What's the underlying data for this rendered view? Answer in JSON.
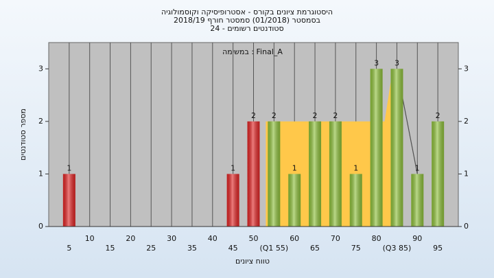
{
  "chart_data": {
    "type": "bar",
    "title": "היסטוגרמת ציונים בקורס - אסטרופיסיקה וקוסמולוגיה",
    "subtitle": "בסמסטר  (01/2018)  סמסטר חורף 2018/19",
    "subtitle2": "סטודנטים רשומים - 24",
    "annotation": "במשימה : Final_A",
    "x_label": "טווח ציונים",
    "y_label": "מספר סטודנטים",
    "x": [
      5,
      10,
      15,
      20,
      25,
      30,
      35,
      40,
      45,
      50,
      55,
      60,
      65,
      70,
      75,
      80,
      85,
      90,
      95
    ],
    "values": [
      1,
      0,
      0,
      0,
      0,
      0,
      0,
      0,
      1,
      2,
      2,
      1,
      2,
      2,
      1,
      3,
      3,
      1,
      2
    ],
    "colors": [
      "#e02424",
      "#e02424",
      "#e02424",
      "#e02424",
      "#e02424",
      "#e02424",
      "#e02424",
      "#e02424",
      "#e02424",
      "#e02424",
      "#8dbf3a",
      "#8dbf3a",
      "#8dbf3a",
      "#8dbf3a",
      "#8dbf3a",
      "#8dbf3a",
      "#8dbf3a",
      "#8dbf3a",
      "#8dbf3a"
    ],
    "area": {
      "color": "#ffc84a",
      "x": [
        53,
        82,
        84
      ],
      "values": [
        2,
        2,
        3
      ]
    },
    "line": {
      "color": "#505050",
      "x": [
        85,
        90
      ],
      "values": [
        3,
        1
      ]
    },
    "xlim": [
      0,
      100
    ],
    "xticks": [
      5,
      10,
      15,
      20,
      25,
      30,
      35,
      40,
      45,
      50,
      {
        "value": 55,
        "label": "(Q1 55)"
      },
      60,
      65,
      70,
      75,
      80,
      {
        "value": 85,
        "label": "(Q3 85)"
      },
      90,
      95
    ],
    "ylim": [
      0,
      3.5
    ],
    "yticks": [
      0,
      1,
      2,
      3
    ],
    "grid": true
  }
}
